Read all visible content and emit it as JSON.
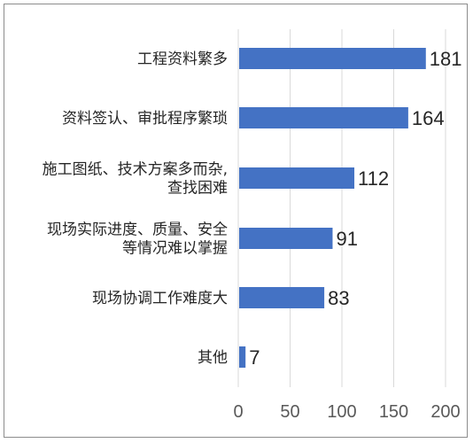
{
  "chart_data": {
    "type": "bar",
    "orientation": "horizontal",
    "categories": [
      [
        "工程资料繁多"
      ],
      [
        "资料签认、审批程序繁琐"
      ],
      [
        "施工图纸、技术方案多而杂,",
        "查找困难"
      ],
      [
        "现场实际进度、质量、安全",
        "等情况难以掌握"
      ],
      [
        "现场协调工作难度大"
      ],
      [
        "其他"
      ]
    ],
    "values": [
      181,
      164,
      112,
      91,
      83,
      7
    ],
    "xlim": [
      0,
      200
    ],
    "xticks": [
      0,
      50,
      100,
      150,
      200
    ],
    "grid": "vertical",
    "bar_color": "#4472c4",
    "title": "",
    "xlabel": "",
    "ylabel": ""
  }
}
